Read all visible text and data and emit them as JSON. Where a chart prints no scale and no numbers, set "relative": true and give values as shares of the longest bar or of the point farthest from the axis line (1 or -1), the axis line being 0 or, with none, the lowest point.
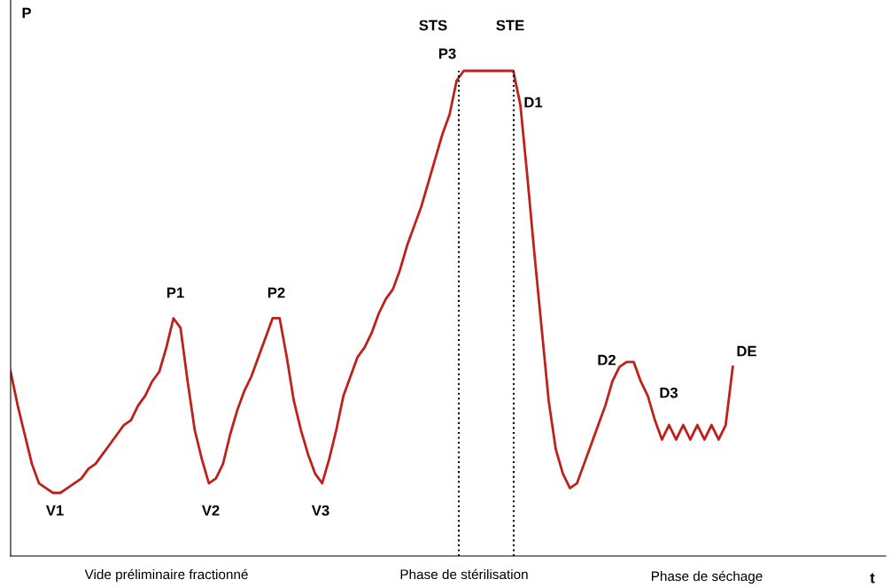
{
  "chart_data": {
    "type": "line",
    "relative": true,
    "ylabel": "P",
    "grid": false,
    "legend": false,
    "marker": "none",
    "line_style": "solid",
    "categories": [
      null,
      null,
      null,
      null,
      null,
      null,
      null,
      null,
      null,
      null,
      null,
      null,
      null,
      null,
      null,
      null,
      null,
      null,
      null,
      null,
      null,
      null,
      null,
      null,
      null,
      null,
      null,
      null,
      null,
      null,
      null,
      null,
      null,
      null,
      null,
      null,
      null,
      null,
      null,
      null,
      null,
      null,
      null,
      null,
      null,
      null,
      null,
      null,
      null,
      null,
      null,
      null,
      null,
      null,
      null,
      null,
      null,
      null,
      null,
      null,
      null,
      null,
      null,
      null,
      null,
      null,
      null,
      null,
      null,
      null,
      null,
      null,
      null,
      null,
      null,
      null,
      null,
      null,
      null,
      null,
      null,
      null,
      null,
      null,
      null,
      null,
      null,
      null,
      null,
      null,
      null,
      null,
      null,
      null,
      null,
      null,
      null,
      null,
      null,
      null,
      null,
      null,
      null
    ],
    "series": [
      {
        "color": "#c0201a",
        "values": [
          0.38,
          0.31,
          0.25,
          0.19,
          0.15,
          0.14,
          0.13,
          0.13,
          0.14,
          0.15,
          0.16,
          0.18,
          0.19,
          0.21,
          0.23,
          0.25,
          0.27,
          0.28,
          0.31,
          0.33,
          0.36,
          0.38,
          0.43,
          0.49,
          0.47,
          0.36,
          0.26,
          0.2,
          0.15,
          0.16,
          0.19,
          0.25,
          0.3,
          0.34,
          0.37,
          0.41,
          0.45,
          0.49,
          0.49,
          0.41,
          0.32,
          0.26,
          0.21,
          0.17,
          0.15,
          0.2,
          0.26,
          0.33,
          0.37,
          0.41,
          0.43,
          0.46,
          0.5,
          0.53,
          0.55,
          0.59,
          0.64,
          0.68,
          0.72,
          0.77,
          0.82,
          0.87,
          0.91,
          0.98,
          1,
          1,
          1,
          1,
          1,
          1,
          1,
          1,
          0.93,
          0.78,
          0.62,
          0.47,
          0.32,
          0.22,
          0.17,
          0.14,
          0.15,
          0.19,
          0.23,
          0.27,
          0.31,
          0.36,
          0.39,
          0.4,
          0.4,
          0.36,
          0.33,
          0.28,
          0.24,
          0.27,
          0.24,
          0.27,
          0.24,
          0.27,
          0.24,
          0.27,
          0.24,
          0.27,
          0.39
        ]
      }
    ],
    "annotations": [
      "P1",
      "P2",
      "V1",
      "V2",
      "V3",
      "P3",
      "D1",
      "D2",
      "D3",
      "DE",
      "Vide préliminaire fractionné",
      "Phase de stérilisation",
      "Phase de séchage",
      "STS",
      "STE",
      "t"
    ]
  }
}
